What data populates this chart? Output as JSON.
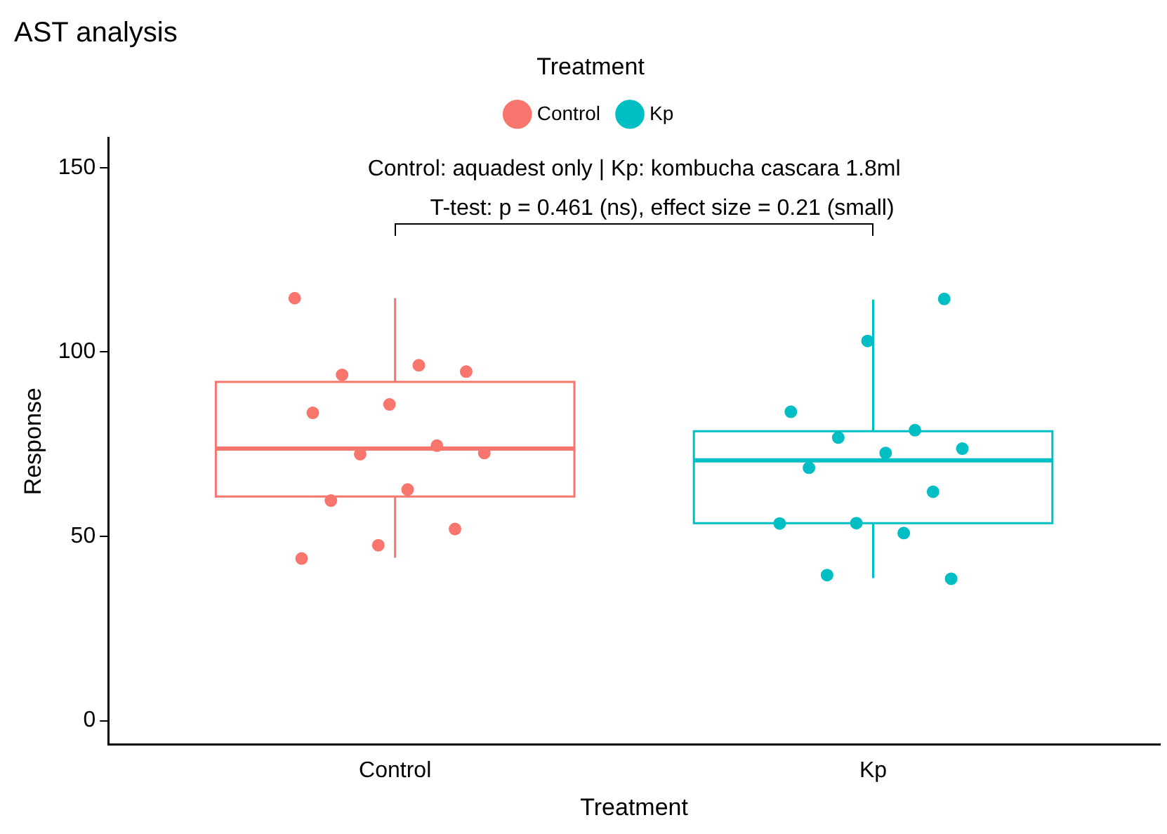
{
  "chart_data": {
    "type": "box",
    "title": "AST analysis",
    "xlabel": "Treatment",
    "ylabel": "Response",
    "legend_title": "Treatment",
    "legend": "top",
    "grid": false,
    "marker": "circle",
    "categories": [
      "Control",
      "Kp"
    ],
    "colors": [
      "#f8766d",
      "#00bfc4"
    ],
    "boxes": [
      {
        "low": 44.2,
        "q1": 60.8,
        "median": 73.8,
        "q3": 91.9,
        "high": 114.6
      },
      {
        "low": 38.7,
        "q1": 53.6,
        "median": 70.6,
        "q3": 78.5,
        "high": 114.2
      }
    ],
    "series": [
      {
        "name": "Control",
        "type": "scatter",
        "color": "#f8766d",
        "x": [
          "Control",
          "Control",
          "Control",
          "Control",
          "Control",
          "Control",
          "Control",
          "Control",
          "Control",
          "Control",
          "Control",
          "Control",
          "Control",
          "Control"
        ],
        "values": [
          114.6,
          96.4,
          93.8,
          94.7,
          85.8,
          83.5,
          74.6,
          72.3,
          72.6,
          62.7,
          59.7,
          52.0,
          47.6,
          44.0
        ]
      },
      {
        "name": "Kp",
        "type": "scatter",
        "color": "#00bfc4",
        "x": [
          "Kp",
          "Kp",
          "Kp",
          "Kp",
          "Kp",
          "Kp",
          "Kp",
          "Kp",
          "Kp",
          "Kp",
          "Kp",
          "Kp",
          "Kp",
          "Kp"
        ],
        "values": [
          114.4,
          103.0,
          83.8,
          78.8,
          76.8,
          73.8,
          72.6,
          68.6,
          62.1,
          53.6,
          53.5,
          50.9,
          39.5,
          38.5
        ]
      }
    ],
    "ylim": [
      -6.5,
      158
    ],
    "yticks": [
      0,
      50,
      100,
      150
    ],
    "annotations": [
      "Control: aquadest only | Kp: kombucha cascara 1.8ml",
      "T-test: p = 0.461 (ns), effect size = 0.21 (small)"
    ]
  }
}
